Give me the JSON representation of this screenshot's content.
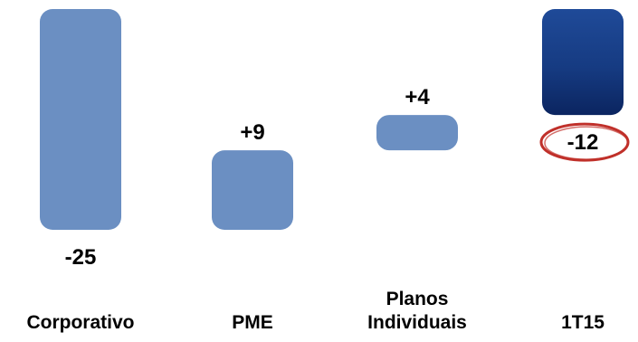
{
  "chart_data": {
    "type": "bar",
    "subtype": "waterfall",
    "categories": [
      "Corporativo",
      "PME",
      "Planos Individuais",
      "1T15"
    ],
    "category_lines": [
      [
        "Corporativo"
      ],
      [
        "PME"
      ],
      [
        "Planos",
        "Individuais"
      ],
      [
        "1T15"
      ]
    ],
    "values": [
      -25,
      9,
      4,
      -12
    ],
    "value_labels": [
      "-25",
      "+9",
      "+4",
      "-12"
    ],
    "is_total": [
      false,
      false,
      false,
      true
    ],
    "highlighted_label": "-12",
    "title": "",
    "xlabel": "",
    "ylabel": "",
    "grid": false,
    "legend": "none",
    "colors": {
      "change": "#6b8fc2",
      "total": "#163b82",
      "total_dark": "#0b2560",
      "highlight_ring": "#c0302a",
      "label": "#000000"
    }
  }
}
